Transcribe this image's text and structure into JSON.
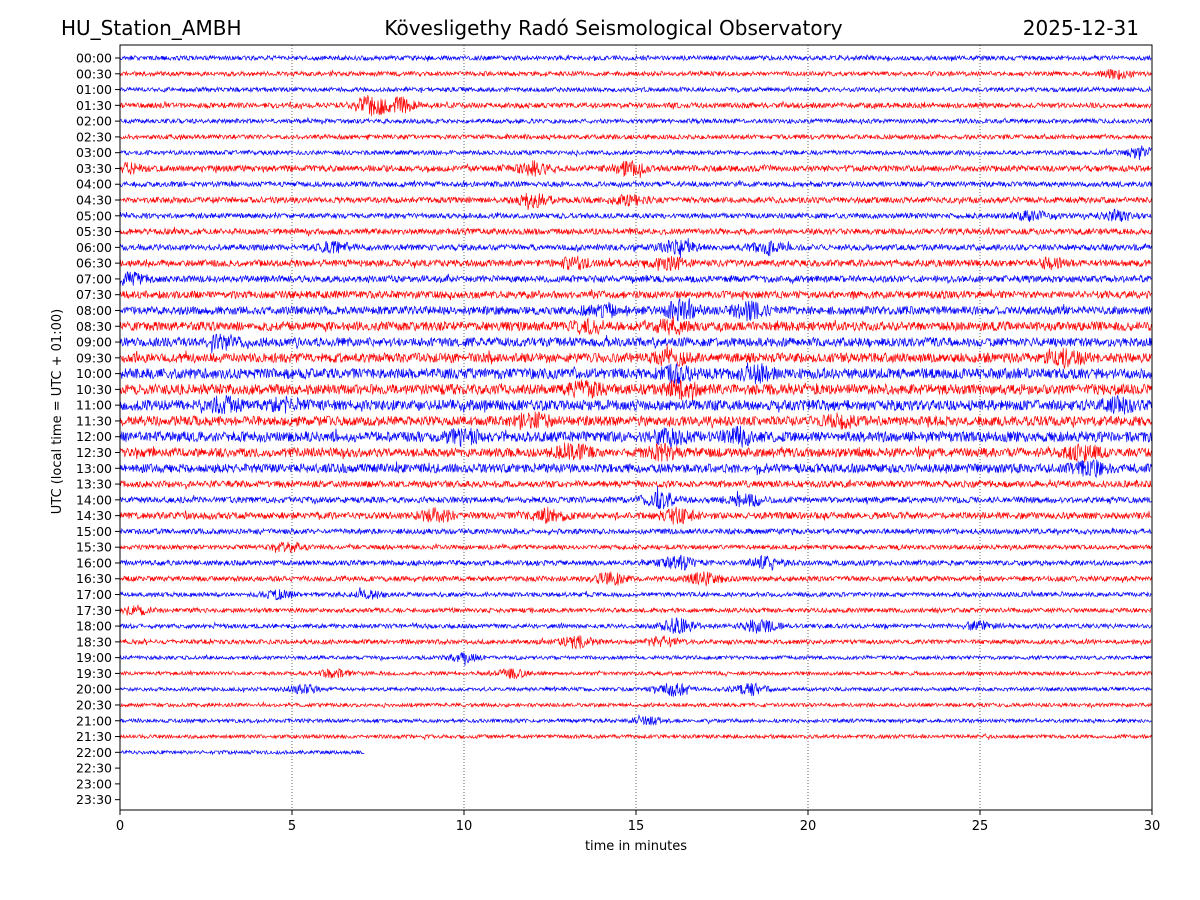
{
  "header": {
    "station": "HU_Station_AMBH",
    "title": "Kövesligethy Radó Seismological Observatory",
    "date": "2025-12-31"
  },
  "colors": {
    "trace_a": "#0000ff",
    "trace_b": "#ff0000",
    "axis": "#000000",
    "grid": "#000000"
  },
  "chart_data": {
    "type": "line",
    "chart_kind": "helicorder",
    "xlabel": "time in minutes",
    "ylabel": "UTC (local time = UTC + 01:00)",
    "xlim": [
      0,
      30
    ],
    "x_ticks": [
      0,
      5,
      10,
      15,
      20,
      25,
      30
    ],
    "grid": "vertical dotted at x ticks",
    "row_labels": [
      "00:00",
      "00:30",
      "01:00",
      "01:30",
      "02:00",
      "02:30",
      "03:00",
      "03:30",
      "04:00",
      "04:30",
      "05:00",
      "05:30",
      "06:00",
      "06:30",
      "07:00",
      "07:30",
      "08:00",
      "08:30",
      "09:00",
      "09:30",
      "10:00",
      "10:30",
      "11:00",
      "11:30",
      "12:00",
      "12:30",
      "13:00",
      "13:30",
      "14:00",
      "14:30",
      "15:00",
      "15:30",
      "16:00",
      "16:30",
      "17:00",
      "17:30",
      "18:00",
      "18:30",
      "19:00",
      "19:30",
      "20:00",
      "20:30",
      "21:00",
      "21:30",
      "22:00",
      "22:30",
      "23:00",
      "23:30"
    ],
    "row_colors": [
      "blue",
      "red"
    ],
    "rows": [
      {
        "start": "00:00",
        "end_minute": 30,
        "level": 0.3,
        "bursts": []
      },
      {
        "start": "00:30",
        "end_minute": 30,
        "level": 0.3,
        "bursts": [
          [
            29,
            0.5
          ]
        ]
      },
      {
        "start": "01:00",
        "end_minute": 30,
        "level": 0.3,
        "bursts": []
      },
      {
        "start": "01:30",
        "end_minute": 30,
        "level": 0.35,
        "bursts": [
          [
            7.3,
            1.2
          ],
          [
            8.2,
            0.8
          ]
        ]
      },
      {
        "start": "02:00",
        "end_minute": 30,
        "level": 0.3,
        "bursts": []
      },
      {
        "start": "02:30",
        "end_minute": 30,
        "level": 0.3,
        "bursts": []
      },
      {
        "start": "03:00",
        "end_minute": 30,
        "level": 0.3,
        "bursts": [
          [
            29.8,
            0.8
          ]
        ]
      },
      {
        "start": "03:30",
        "end_minute": 30,
        "level": 0.4,
        "bursts": [
          [
            0.2,
            0.5
          ],
          [
            12,
            0.7
          ],
          [
            14.8,
            0.7
          ]
        ]
      },
      {
        "start": "04:00",
        "end_minute": 30,
        "level": 0.35,
        "bursts": []
      },
      {
        "start": "04:30",
        "end_minute": 30,
        "level": 0.4,
        "bursts": [
          [
            12,
            0.7
          ],
          [
            14.8,
            0.5
          ]
        ]
      },
      {
        "start": "05:00",
        "end_minute": 30,
        "level": 0.35,
        "bursts": [
          [
            26.5,
            0.6
          ],
          [
            29,
            0.6
          ]
        ]
      },
      {
        "start": "05:30",
        "end_minute": 30,
        "level": 0.4,
        "bursts": []
      },
      {
        "start": "06:00",
        "end_minute": 30,
        "level": 0.4,
        "bursts": [
          [
            6.3,
            0.6
          ],
          [
            16.2,
            0.8
          ],
          [
            18.8,
            0.8
          ]
        ]
      },
      {
        "start": "06:30",
        "end_minute": 30,
        "level": 0.45,
        "bursts": [
          [
            13.2,
            0.6
          ],
          [
            16,
            0.6
          ],
          [
            27,
            0.5
          ]
        ]
      },
      {
        "start": "07:00",
        "end_minute": 30,
        "level": 0.45,
        "bursts": [
          [
            0.3,
            0.6
          ]
        ]
      },
      {
        "start": "07:30",
        "end_minute": 30,
        "level": 0.5,
        "bursts": []
      },
      {
        "start": "08:00",
        "end_minute": 30,
        "level": 0.55,
        "bursts": [
          [
            14,
            0.8
          ],
          [
            16.3,
            1.0
          ],
          [
            18.3,
            0.9
          ]
        ]
      },
      {
        "start": "08:30",
        "end_minute": 30,
        "level": 0.6,
        "bursts": [
          [
            13.6,
            0.7
          ],
          [
            16,
            0.8
          ]
        ]
      },
      {
        "start": "09:00",
        "end_minute": 30,
        "level": 0.6,
        "bursts": [
          [
            3,
            0.6
          ]
        ]
      },
      {
        "start": "09:30",
        "end_minute": 30,
        "level": 0.65,
        "bursts": [
          [
            16,
            0.7
          ],
          [
            27.5,
            0.8
          ]
        ]
      },
      {
        "start": "10:00",
        "end_minute": 30,
        "level": 0.7,
        "bursts": [
          [
            16.2,
            0.8
          ],
          [
            18.5,
            0.8
          ]
        ]
      },
      {
        "start": "10:30",
        "end_minute": 30,
        "level": 0.7,
        "bursts": [
          [
            13.5,
            0.7
          ],
          [
            16.3,
            0.8
          ]
        ]
      },
      {
        "start": "11:00",
        "end_minute": 30,
        "level": 0.7,
        "bursts": [
          [
            3,
            0.7
          ],
          [
            4.8,
            0.6
          ],
          [
            29,
            0.7
          ]
        ]
      },
      {
        "start": "11:30",
        "end_minute": 30,
        "level": 0.65,
        "bursts": [
          [
            12,
            0.7
          ],
          [
            21,
            0.6
          ]
        ]
      },
      {
        "start": "12:00",
        "end_minute": 30,
        "level": 0.7,
        "bursts": [
          [
            10,
            0.7
          ],
          [
            16,
            0.9
          ],
          [
            18,
            0.8
          ]
        ]
      },
      {
        "start": "12:30",
        "end_minute": 30,
        "level": 0.6,
        "bursts": [
          [
            13.2,
            0.8
          ],
          [
            15.8,
            0.7
          ],
          [
            28,
            0.8
          ]
        ]
      },
      {
        "start": "13:00",
        "end_minute": 30,
        "level": 0.6,
        "bursts": [
          [
            28.2,
            0.7
          ]
        ]
      },
      {
        "start": "13:30",
        "end_minute": 30,
        "level": 0.45,
        "bursts": []
      },
      {
        "start": "14:00",
        "end_minute": 30,
        "level": 0.4,
        "bursts": [
          [
            15.7,
            0.9
          ],
          [
            18.2,
            0.8
          ]
        ]
      },
      {
        "start": "14:30",
        "end_minute": 30,
        "level": 0.45,
        "bursts": [
          [
            9.2,
            0.7
          ],
          [
            12.5,
            0.8
          ],
          [
            16.2,
            0.8
          ]
        ]
      },
      {
        "start": "15:00",
        "end_minute": 30,
        "level": 0.35,
        "bursts": []
      },
      {
        "start": "15:30",
        "end_minute": 30,
        "level": 0.3,
        "bursts": [
          [
            4.9,
            0.5
          ]
        ]
      },
      {
        "start": "16:00",
        "end_minute": 30,
        "level": 0.35,
        "bursts": [
          [
            16.2,
            0.8
          ],
          [
            18.8,
            0.7
          ]
        ]
      },
      {
        "start": "16:30",
        "end_minute": 30,
        "level": 0.35,
        "bursts": [
          [
            14.2,
            0.8
          ],
          [
            17,
            0.7
          ]
        ]
      },
      {
        "start": "17:00",
        "end_minute": 30,
        "level": 0.3,
        "bursts": [
          [
            4.6,
            0.4
          ],
          [
            7.2,
            0.4
          ]
        ]
      },
      {
        "start": "17:30",
        "end_minute": 30,
        "level": 0.3,
        "bursts": [
          [
            0.5,
            0.4
          ]
        ]
      },
      {
        "start": "18:00",
        "end_minute": 30,
        "level": 0.3,
        "bursts": [
          [
            16.2,
            0.9
          ],
          [
            18.6,
            0.8
          ],
          [
            25,
            0.5
          ]
        ]
      },
      {
        "start": "18:30",
        "end_minute": 30,
        "level": 0.3,
        "bursts": [
          [
            13.3,
            0.7
          ],
          [
            15.8,
            0.6
          ]
        ]
      },
      {
        "start": "19:00",
        "end_minute": 30,
        "level": 0.25,
        "bursts": [
          [
            10,
            0.5
          ]
        ]
      },
      {
        "start": "19:30",
        "end_minute": 30,
        "level": 0.25,
        "bursts": [
          [
            6.2,
            0.5
          ],
          [
            11.4,
            0.5
          ]
        ]
      },
      {
        "start": "20:00",
        "end_minute": 30,
        "level": 0.25,
        "bursts": [
          [
            5.3,
            0.5
          ],
          [
            16.1,
            0.8
          ],
          [
            18.3,
            0.7
          ]
        ]
      },
      {
        "start": "20:30",
        "end_minute": 30,
        "level": 0.25,
        "bursts": []
      },
      {
        "start": "21:00",
        "end_minute": 30,
        "level": 0.25,
        "bursts": [
          [
            15.4,
            0.4
          ]
        ]
      },
      {
        "start": "21:30",
        "end_minute": 30,
        "level": 0.25,
        "bursts": []
      },
      {
        "start": "22:00",
        "end_minute": 7.1,
        "level": 0.25,
        "bursts": []
      }
    ]
  }
}
